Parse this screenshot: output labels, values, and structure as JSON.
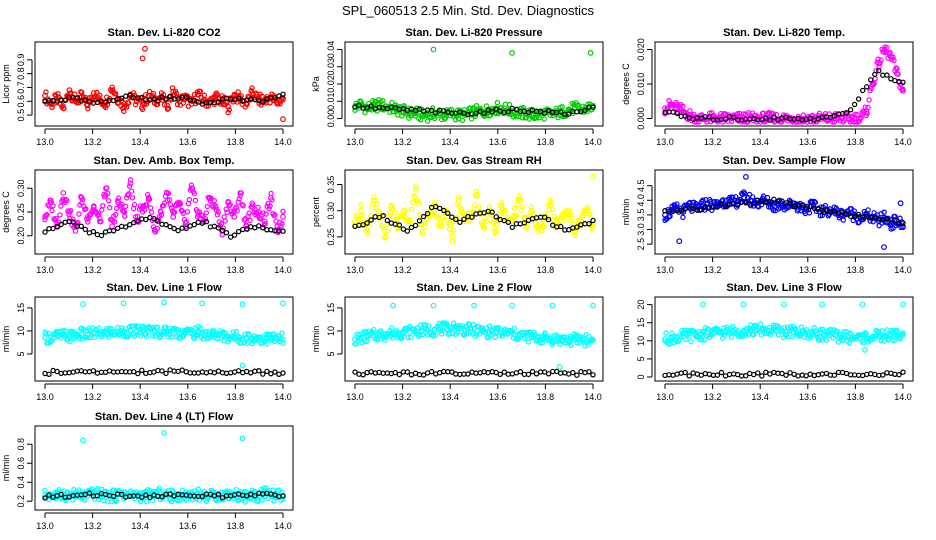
{
  "page": {
    "title": "SPL_060513  2.5 Min. Std. Dev. Diagnostics"
  },
  "series_colors": {
    "co2": "#ff0000",
    "pressure": "#00cc00",
    "temp": "#ff00ff",
    "box_temp": "#ff00ff",
    "rh": "#ffff00",
    "sample_flow": "#0000ff",
    "line_flows": "#00ffff",
    "overlay": "#000000"
  },
  "chart_data": [
    {
      "type": "scatter",
      "title": "Stan. Dev. Li-820 CO2",
      "ylabel": "Licor ppm",
      "xlim": [
        13.0,
        14.0
      ],
      "ylim": [
        0.45,
        1.0
      ],
      "xticks": [
        "13.0",
        "13.2",
        "13.4",
        "13.6",
        "13.8",
        "14.0"
      ],
      "yticks": [
        "0.5",
        "0.6",
        "0.7",
        "0.8",
        "0.9"
      ],
      "color": "#ff0000",
      "series": [
        {
          "values": [
            0.64,
            0.58,
            0.62,
            0.55,
            0.68,
            0.6,
            0.63,
            0.57,
            0.66,
            0.61,
            0.59,
            0.7,
            0.62,
            0.56,
            0.65,
            0.6,
            0.58,
            0.64,
            0.61,
            0.63,
            0.57,
            0.67,
            0.6,
            0.62,
            0.58,
            0.65,
            0.61,
            0.59,
            0.63,
            0.6,
            0.56,
            0.64,
            0.62,
            0.58,
            0.66,
            0.61,
            0.6,
            0.63,
            0.59,
            0.62
          ]
        },
        {
          "values": [
            0.6,
            0.62,
            0.58,
            0.64,
            0.61,
            0.63,
            0.59,
            0.62,
            0.6,
            0.64
          ]
        }
      ],
      "outliers": [
        {
          "x": 13.42,
          "y": 0.98
        },
        {
          "x": 13.41,
          "y": 0.91
        },
        {
          "x": 14.0,
          "y": 0.47
        }
      ]
    },
    {
      "type": "scatter",
      "title": "Stan. Dev. Li-820 Pressure",
      "ylabel": "kPa",
      "xlim": [
        13.0,
        14.0
      ],
      "ylim": [
        -0.002,
        0.042
      ],
      "xticks": [
        "13.0",
        "13.2",
        "13.4",
        "13.6",
        "13.8",
        "14.0"
      ],
      "yticks": [
        "0.00",
        "0.01",
        "0.02",
        "0.03",
        "0.04"
      ],
      "color": "#00cc00",
      "series": [
        {
          "values": [
            0.007,
            0.008,
            0.006,
            0.007,
            0.008,
            0.007,
            0.006,
            0.005,
            0.004,
            0.003,
            0.003,
            0.002,
            0.002,
            0.003,
            0.002,
            0.002,
            0.003,
            0.002,
            0.002,
            0.003,
            0.004,
            0.004,
            0.005,
            0.006,
            0.006,
            0.005,
            0.004,
            0.003,
            0.003,
            0.002,
            0.002,
            0.003,
            0.002,
            0.003,
            0.004,
            0.005,
            0.006,
            0.005,
            0.006,
            0.007
          ]
        },
        {
          "values": [
            0.007,
            0.006,
            0.005,
            0.004,
            0.003,
            0.004,
            0.005,
            0.004,
            0.003,
            0.006
          ]
        }
      ],
      "outliers": [
        {
          "x": 13.33,
          "y": 0.04
        },
        {
          "x": 13.66,
          "y": 0.038
        },
        {
          "x": 13.99,
          "y": 0.038
        }
      ]
    },
    {
      "type": "scatter",
      "title": "Stan. Dev. Li-820 Temp.",
      "ylabel": "degrees C",
      "xlim": [
        13.0,
        14.0
      ],
      "ylim": [
        -0.001,
        0.021
      ],
      "xticks": [
        "13.0",
        "13.2",
        "13.4",
        "13.6",
        "13.8",
        "14.0"
      ],
      "yticks": [
        "0.000",
        "0.010",
        "0.020"
      ],
      "color": "#ff00ff",
      "series": [
        {
          "values": [
            0.003,
            0.004,
            0.003,
            0.002,
            0.001,
            0.0,
            0.0,
            0.0,
            0.0,
            0.0,
            0.0,
            0.0,
            0.0,
            0.0,
            0.0,
            0.0,
            0.0,
            0.0,
            0.0,
            0.0,
            0.0,
            0.0,
            0.0,
            0.0,
            0.0,
            0.0,
            0.0,
            0.0,
            0.0,
            0.0,
            0.0,
            0.0,
            0.0,
            0.002,
            0.01,
            0.016,
            0.02,
            0.018,
            0.013,
            0.008
          ]
        },
        {
          "values": [
            0.002,
            0.0,
            0.0,
            0.0,
            0.0,
            0.0,
            0.0,
            0.002,
            0.014,
            0.01
          ]
        }
      ],
      "outliers": []
    },
    {
      "type": "scatter",
      "title": "Stan. Dev. Amb. Box Temp.",
      "ylabel": "degrees C",
      "xlim": [
        13.0,
        14.0
      ],
      "ylim": [
        0.17,
        0.33
      ],
      "xticks": [
        "13.0",
        "13.2",
        "13.4",
        "13.6",
        "13.8",
        "14.0"
      ],
      "yticks": [
        "0.20",
        "0.25",
        "0.30"
      ],
      "color": "#ff00ff",
      "series": [
        {
          "values": [
            0.24,
            0.27,
            0.22,
            0.29,
            0.25,
            0.21,
            0.28,
            0.24,
            0.26,
            0.23,
            0.3,
            0.22,
            0.27,
            0.25,
            0.31,
            0.23,
            0.26,
            0.28,
            0.21,
            0.25,
            0.29,
            0.24,
            0.27,
            0.22,
            0.3,
            0.25,
            0.23,
            0.28,
            0.26,
            0.21,
            0.27,
            0.24,
            0.29,
            0.22,
            0.26,
            0.25,
            0.23,
            0.28,
            0.21,
            0.24
          ]
        },
        {
          "values": [
            0.21,
            0.23,
            0.2,
            0.22,
            0.24,
            0.21,
            0.23,
            0.2,
            0.22,
            0.21
          ]
        }
      ],
      "outliers": []
    },
    {
      "type": "scatter",
      "title": "Stan. Dev. Gas Stream RH",
      "ylabel": "percent",
      "xlim": [
        13.0,
        14.0
      ],
      "ylim": [
        0.225,
        0.37
      ],
      "xticks": [
        "13.0",
        "13.2",
        "13.4",
        "13.6",
        "13.8",
        "14.0"
      ],
      "yticks": [
        "0.25",
        "0.30",
        "0.35"
      ],
      "color": "#ffff00",
      "series": [
        {
          "values": [
            0.28,
            0.3,
            0.26,
            0.32,
            0.29,
            0.25,
            0.31,
            0.27,
            0.3,
            0.28,
            0.34,
            0.26,
            0.29,
            0.31,
            0.27,
            0.3,
            0.25,
            0.32,
            0.28,
            0.29,
            0.33,
            0.27,
            0.3,
            0.26,
            0.31,
            0.28,
            0.29,
            0.32,
            0.27,
            0.3,
            0.26,
            0.28,
            0.31,
            0.27,
            0.29,
            0.3,
            0.26,
            0.28,
            0.3,
            0.27
          ]
        },
        {
          "values": [
            0.27,
            0.29,
            0.26,
            0.31,
            0.28,
            0.3,
            0.27,
            0.29,
            0.26,
            0.28
          ]
        }
      ],
      "outliers": [
        {
          "x": 14.0,
          "y": 0.365
        }
      ]
    },
    {
      "type": "scatter",
      "title": "Stan. Dev. Sample Flow",
      "ylabel": "ml/min",
      "xlim": [
        13.0,
        14.0
      ],
      "ylim": [
        2.3,
        4.9
      ],
      "xticks": [
        "13.0",
        "13.2",
        "13.4",
        "13.6",
        "13.8",
        "14.0"
      ],
      "yticks": [
        "2.5",
        "3.0",
        "3.5",
        "4.0",
        "4.5"
      ],
      "color": "#0000ff",
      "series": [
        {
          "values": [
            3.5,
            3.6,
            3.7,
            3.6,
            3.8,
            3.7,
            3.8,
            3.9,
            3.8,
            3.9,
            4.0,
            3.9,
            4.0,
            4.1,
            4.0,
            3.9,
            4.0,
            3.9,
            3.8,
            3.9,
            3.8,
            3.9,
            3.8,
            3.7,
            3.8,
            3.7,
            3.6,
            3.7,
            3.6,
            3.5,
            3.6,
            3.5,
            3.4,
            3.5,
            3.4,
            3.3,
            3.4,
            3.2,
            3.3,
            3.1
          ]
        },
        {
          "values": [
            3.6,
            3.7,
            3.8,
            3.9,
            4.0,
            3.8,
            3.7,
            3.5,
            3.4,
            3.2
          ]
        }
      ],
      "outliers": [
        {
          "x": 13.34,
          "y": 4.8
        },
        {
          "x": 13.06,
          "y": 2.6
        },
        {
          "x": 13.92,
          "y": 2.4
        },
        {
          "x": 13.99,
          "y": 3.9
        }
      ]
    },
    {
      "type": "scatter",
      "title": "Stan. Dev. Line 1 Flow",
      "ylabel": "ml/min",
      "xlim": [
        13.0,
        14.0
      ],
      "ylim": [
        0,
        16.5
      ],
      "xticks": [
        "13.0",
        "13.2",
        "13.4",
        "13.6",
        "13.8",
        "14.0"
      ],
      "yticks": [
        "5",
        "10",
        "15"
      ],
      "color": "#00ffff",
      "series": [
        {
          "values": [
            8.5,
            8.7,
            8.9,
            9.0,
            8.8,
            9.1,
            9.3,
            9.2,
            9.5,
            9.4,
            9.6,
            9.8,
            9.7,
            9.9,
            10.0,
            9.8,
            10.1,
            9.9,
            10.0,
            9.8,
            9.7,
            9.9,
            9.6,
            9.8,
            9.5,
            9.7,
            9.4,
            9.3,
            9.1,
            9.0,
            8.8,
            8.7,
            8.6,
            8.5,
            8.4,
            8.5,
            8.3,
            8.4,
            8.3,
            8.2
          ]
        },
        {
          "values": [
            1.0,
            1.0,
            1.1,
            1.1,
            1.2,
            1.2,
            1.1,
            1.1,
            1.0,
            1.0
          ]
        }
      ],
      "outliers": [
        {
          "x": 13.16,
          "y": 15.8
        },
        {
          "x": 13.33,
          "y": 16.0
        },
        {
          "x": 13.5,
          "y": 16.2
        },
        {
          "x": 13.66,
          "y": 16.0
        },
        {
          "x": 13.83,
          "y": 15.8
        },
        {
          "x": 14.0,
          "y": 16.0
        },
        {
          "x": 13.83,
          "y": 2.5
        }
      ]
    },
    {
      "type": "scatter",
      "title": "Stan. Dev. Line 2 Flow",
      "ylabel": "ml/min",
      "xlim": [
        13.0,
        14.0
      ],
      "ylim": [
        0,
        16.5
      ],
      "xticks": [
        "13.0",
        "13.2",
        "13.4",
        "13.6",
        "13.8",
        "14.0"
      ],
      "yticks": [
        "5",
        "10",
        "15"
      ],
      "color": "#00ffff",
      "series": [
        {
          "values": [
            8.2,
            8.5,
            8.8,
            9.0,
            9.2,
            9.3,
            9.5,
            9.6,
            9.7,
            9.8,
            10.0,
            10.1,
            10.2,
            10.3,
            10.5,
            10.4,
            10.6,
            10.5,
            10.3,
            10.2,
            10.0,
            9.9,
            9.8,
            9.7,
            9.6,
            9.5,
            9.3,
            9.1,
            8.9,
            8.7,
            8.5,
            8.4,
            8.3,
            8.2,
            8.1,
            8.0,
            8.1,
            8.2,
            8.0,
            8.1
          ]
        },
        {
          "values": [
            0.8,
            0.8,
            0.8,
            0.8,
            0.8,
            0.8,
            0.8,
            0.8,
            0.8,
            0.8
          ]
        }
      ],
      "outliers": [
        {
          "x": 13.16,
          "y": 15.5
        },
        {
          "x": 13.33,
          "y": 15.5
        },
        {
          "x": 13.5,
          "y": 15.5
        },
        {
          "x": 13.66,
          "y": 15.5
        },
        {
          "x": 13.83,
          "y": 15.5
        },
        {
          "x": 14.0,
          "y": 15.5
        },
        {
          "x": 13.86,
          "y": 2.2
        }
      ]
    },
    {
      "type": "scatter",
      "title": "Stan. Dev. Line 3 Flow",
      "ylabel": "ml/min",
      "xlim": [
        13.0,
        14.0
      ],
      "ylim": [
        0,
        21
      ],
      "xticks": [
        "13.0",
        "13.2",
        "13.4",
        "13.6",
        "13.8",
        "14.0"
      ],
      "yticks": [
        "0",
        "5",
        "10",
        "15",
        "20"
      ],
      "color": "#00ffff",
      "series": [
        {
          "values": [
            10.5,
            10.8,
            11.0,
            11.2,
            11.4,
            11.6,
            11.8,
            12.0,
            12.1,
            12.3,
            12.4,
            12.5,
            12.7,
            12.8,
            13.0,
            12.9,
            13.1,
            12.8,
            12.9,
            12.6,
            12.5,
            12.4,
            12.3,
            12.2,
            12.0,
            11.9,
            11.8,
            11.6,
            11.4,
            11.2,
            11.0,
            10.9,
            10.8,
            11.0,
            11.2,
            11.3,
            11.4,
            11.5,
            11.6,
            11.7
          ]
        },
        {
          "values": [
            0.8,
            0.8,
            0.8,
            0.8,
            0.8,
            0.8,
            0.8,
            0.8,
            0.8,
            0.8
          ]
        }
      ],
      "outliers": [
        {
          "x": 13.16,
          "y": 20.0
        },
        {
          "x": 13.33,
          "y": 20.0
        },
        {
          "x": 13.5,
          "y": 20.0
        },
        {
          "x": 13.66,
          "y": 20.0
        },
        {
          "x": 13.83,
          "y": 20.0
        },
        {
          "x": 14.0,
          "y": 20.0
        },
        {
          "x": 13.84,
          "y": 7.5
        }
      ]
    },
    {
      "type": "scatter",
      "title": "Stan. Dev. Line 4 (LT) Flow",
      "ylabel": "ml/min",
      "xlim": [
        13.0,
        14.0
      ],
      "ylim": [
        0.15,
        0.95
      ],
      "xticks": [
        "13.0",
        "13.2",
        "13.4",
        "13.6",
        "13.8",
        "14.0"
      ],
      "yticks": [
        "0.2",
        "0.4",
        "0.6",
        "0.8"
      ],
      "color": "#00ffff",
      "series": [
        {
          "values": [
            0.26,
            0.27,
            0.25,
            0.28,
            0.26,
            0.27,
            0.25,
            0.26,
            0.28,
            0.27,
            0.26,
            0.25,
            0.27,
            0.28,
            0.26,
            0.27,
            0.25,
            0.26,
            0.27,
            0.28,
            0.26,
            0.25,
            0.27,
            0.26,
            0.28,
            0.27,
            0.26,
            0.25,
            0.27,
            0.26,
            0.28,
            0.27,
            0.26,
            0.25,
            0.27,
            0.26,
            0.28,
            0.27,
            0.26,
            0.25
          ]
        },
        {
          "values": [
            0.25,
            0.26,
            0.27,
            0.26,
            0.25,
            0.27,
            0.26,
            0.25,
            0.27,
            0.26
          ]
        }
      ],
      "outliers": [
        {
          "x": 13.16,
          "y": 0.84
        },
        {
          "x": 13.5,
          "y": 0.92
        },
        {
          "x": 13.83,
          "y": 0.86
        }
      ]
    }
  ]
}
